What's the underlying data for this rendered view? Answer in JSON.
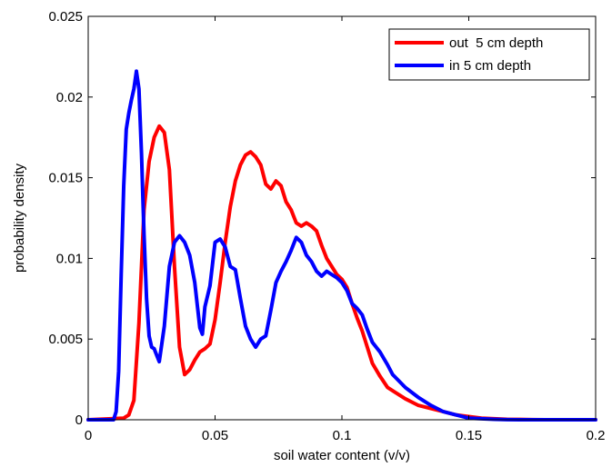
{
  "chart_data": {
    "type": "line",
    "xlabel": "soil water content (v/v)",
    "ylabel": "probability density",
    "xlim": [
      0,
      0.2
    ],
    "ylim": [
      0,
      0.025
    ],
    "xticks": [
      0,
      0.05,
      0.1,
      0.15,
      0.2
    ],
    "xtick_labels": [
      "0",
      "0.05",
      "0.1",
      "0.15",
      "0.2"
    ],
    "yticks": [
      0,
      0.005,
      0.01,
      0.015,
      0.02,
      0.025
    ],
    "ytick_labels": [
      "0",
      "0.005",
      "0.01",
      "0.015",
      "0.02",
      "0.025"
    ],
    "grid": false,
    "legend_position": "top-right",
    "series": [
      {
        "name": "out  5 cm depth",
        "color": "#ff0000",
        "x": [
          0,
          0.014,
          0.016,
          0.018,
          0.02,
          0.022,
          0.024,
          0.026,
          0.028,
          0.03,
          0.032,
          0.034,
          0.036,
          0.038,
          0.04,
          0.042,
          0.044,
          0.046,
          0.048,
          0.05,
          0.052,
          0.054,
          0.056,
          0.058,
          0.06,
          0.062,
          0.064,
          0.066,
          0.068,
          0.07,
          0.072,
          0.074,
          0.076,
          0.078,
          0.08,
          0.082,
          0.084,
          0.086,
          0.088,
          0.09,
          0.092,
          0.094,
          0.096,
          0.098,
          0.1,
          0.102,
          0.104,
          0.106,
          0.108,
          0.11,
          0.112,
          0.115,
          0.118,
          0.12,
          0.125,
          0.13,
          0.135,
          0.14,
          0.145,
          0.15,
          0.155,
          0.16,
          0.165,
          0.17,
          0.175,
          0.18,
          0.2
        ],
        "y": [
          0,
          0.0001,
          0.0003,
          0.0012,
          0.006,
          0.013,
          0.016,
          0.0175,
          0.0182,
          0.0178,
          0.0155,
          0.0095,
          0.0045,
          0.0028,
          0.0031,
          0.0037,
          0.0042,
          0.0044,
          0.0047,
          0.0062,
          0.0085,
          0.011,
          0.0132,
          0.0148,
          0.0158,
          0.0164,
          0.0166,
          0.0163,
          0.0158,
          0.0146,
          0.0143,
          0.0148,
          0.0145,
          0.0135,
          0.013,
          0.0122,
          0.012,
          0.0122,
          0.012,
          0.0117,
          0.0108,
          0.01,
          0.0095,
          0.009,
          0.0087,
          0.0082,
          0.0072,
          0.0063,
          0.0055,
          0.0045,
          0.0035,
          0.0027,
          0.002,
          0.0018,
          0.0013,
          0.0009,
          0.0007,
          0.0005,
          0.0003,
          0.0002,
          0.0001,
          6e-05,
          3e-05,
          2e-05,
          1e-05,
          0,
          0
        ]
      },
      {
        "name": "in 5 cm depth",
        "color": "#0000ff",
        "x": [
          0,
          0.01,
          0.011,
          0.012,
          0.013,
          0.014,
          0.015,
          0.016,
          0.017,
          0.018,
          0.019,
          0.02,
          0.021,
          0.022,
          0.023,
          0.024,
          0.025,
          0.026,
          0.027,
          0.028,
          0.03,
          0.032,
          0.034,
          0.036,
          0.038,
          0.04,
          0.042,
          0.044,
          0.045,
          0.046,
          0.048,
          0.05,
          0.052,
          0.054,
          0.056,
          0.058,
          0.06,
          0.062,
          0.064,
          0.066,
          0.068,
          0.07,
          0.072,
          0.074,
          0.076,
          0.078,
          0.08,
          0.082,
          0.084,
          0.086,
          0.088,
          0.09,
          0.092,
          0.094,
          0.096,
          0.098,
          0.1,
          0.102,
          0.104,
          0.106,
          0.108,
          0.11,
          0.112,
          0.115,
          0.118,
          0.12,
          0.125,
          0.13,
          0.135,
          0.14,
          0.145,
          0.15,
          0.155,
          0.16,
          0.165,
          0.17,
          0.2
        ],
        "y": [
          0,
          0,
          0.0005,
          0.003,
          0.009,
          0.0145,
          0.018,
          0.019,
          0.0198,
          0.0205,
          0.0216,
          0.0205,
          0.0165,
          0.0115,
          0.0075,
          0.0052,
          0.0045,
          0.0044,
          0.004,
          0.0036,
          0.0058,
          0.0095,
          0.011,
          0.0114,
          0.011,
          0.0102,
          0.0085,
          0.0057,
          0.0053,
          0.007,
          0.0083,
          0.011,
          0.0112,
          0.0107,
          0.0095,
          0.0093,
          0.0075,
          0.0058,
          0.005,
          0.0045,
          0.005,
          0.0052,
          0.0068,
          0.0085,
          0.0092,
          0.0098,
          0.0105,
          0.0113,
          0.011,
          0.0102,
          0.0098,
          0.0092,
          0.0089,
          0.0092,
          0.009,
          0.0088,
          0.0085,
          0.008,
          0.0072,
          0.0069,
          0.0065,
          0.0056,
          0.0048,
          0.0042,
          0.0034,
          0.0028,
          0.002,
          0.0014,
          0.0009,
          0.0005,
          0.0003,
          0.0001,
          6e-05,
          3e-05,
          1e-05,
          0,
          0
        ]
      }
    ]
  },
  "colors": {
    "out_series": "#ff0000",
    "in_series": "#0000ff",
    "axes": "#000000",
    "background": "#ffffff"
  }
}
